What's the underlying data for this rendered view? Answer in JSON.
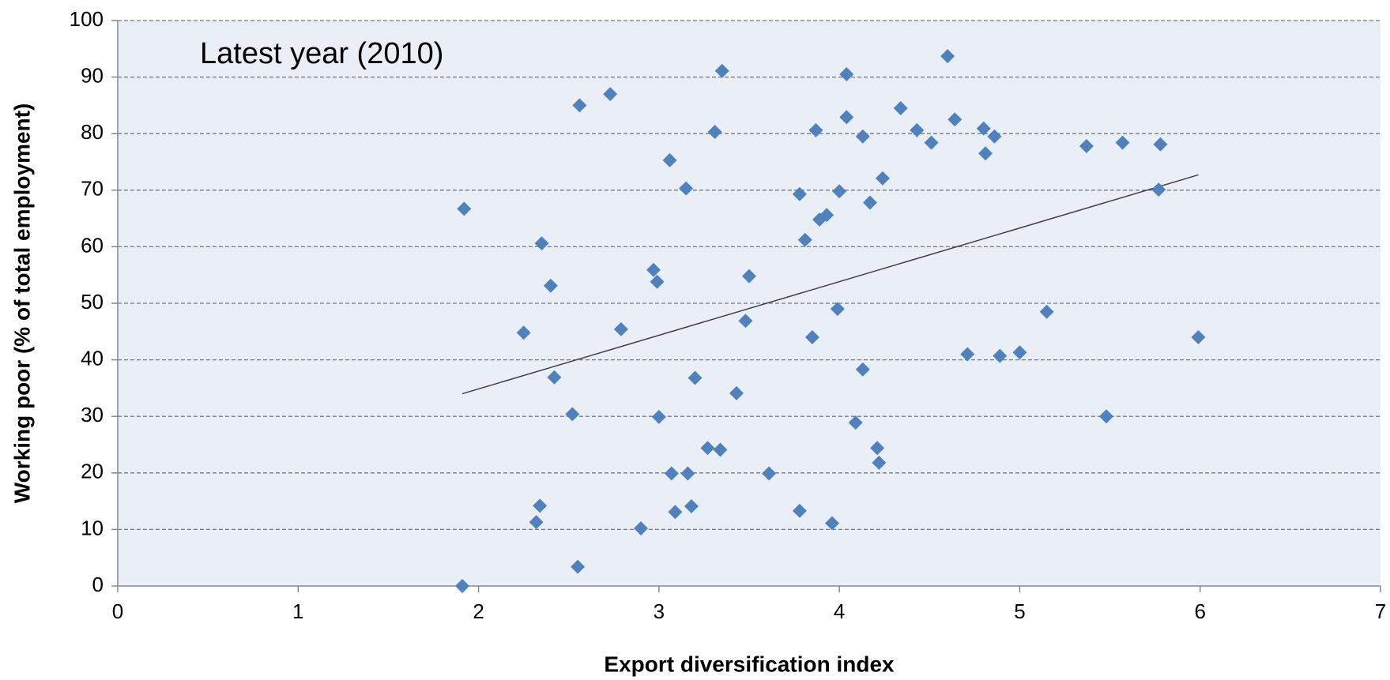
{
  "chart_data": {
    "type": "scatter",
    "annotation": "Latest year (2010)",
    "x_label": "Export diversification index",
    "y_label": "Working poor (% of total employment)",
    "xlim": [
      0,
      7
    ],
    "ylim": [
      0,
      100
    ],
    "xticks": [
      0,
      1,
      2,
      3,
      4,
      5,
      6,
      7
    ],
    "yticks": [
      0,
      10,
      20,
      30,
      40,
      50,
      60,
      70,
      80,
      90,
      100
    ],
    "grid": true,
    "series": [
      {
        "color": "#4f81bd",
        "x": [
          1.91,
          1.92,
          2.35,
          2.4,
          2.25,
          2.42,
          2.52,
          2.34,
          2.32,
          2.55,
          2.56,
          2.73,
          2.79,
          2.9,
          2.97,
          2.99,
          3.0,
          3.06,
          3.15,
          3.07,
          3.09,
          3.16,
          3.18,
          3.2,
          3.27,
          3.34,
          3.31,
          3.35,
          3.5,
          3.48,
          3.43,
          3.61,
          3.78,
          3.81,
          3.78,
          3.87,
          3.85,
          3.89,
          3.93,
          3.96,
          3.99,
          4.0,
          4.04,
          4.04,
          4.09,
          4.13,
          4.13,
          4.17,
          4.21,
          4.22,
          4.24,
          4.34,
          4.43,
          4.51,
          4.6,
          4.64,
          4.71,
          4.8,
          4.81,
          4.86,
          4.89,
          5.0,
          5.15,
          5.37,
          5.48,
          5.57,
          5.78,
          5.77,
          5.99
        ],
        "values": [
          0,
          66.7,
          60.6,
          53.1,
          44.8,
          36.9,
          30.4,
          14.2,
          11.3,
          3.4,
          85.0,
          87.0,
          45.4,
          10.2,
          55.9,
          53.8,
          29.9,
          75.3,
          70.3,
          19.9,
          13.1,
          19.9,
          14.1,
          36.8,
          24.4,
          24.1,
          80.3,
          91.1,
          54.8,
          46.9,
          34.1,
          19.9,
          69.3,
          61.2,
          13.3,
          80.6,
          44.0,
          64.8,
          65.6,
          11.1,
          49.0,
          69.8,
          90.5,
          82.9,
          28.9,
          79.5,
          38.3,
          67.8,
          24.4,
          21.8,
          72.1,
          84.5,
          80.6,
          78.4,
          93.7,
          82.5,
          41.0,
          80.9,
          76.5,
          79.5,
          40.7,
          41.3,
          48.5,
          77.8,
          30.0,
          78.4,
          78.1,
          70.1,
          44.0
        ]
      }
    ],
    "trendline": {
      "color": "#404040",
      "x": [
        1.91,
        5.99
      ],
      "values": [
        34.0,
        72.7
      ]
    }
  }
}
